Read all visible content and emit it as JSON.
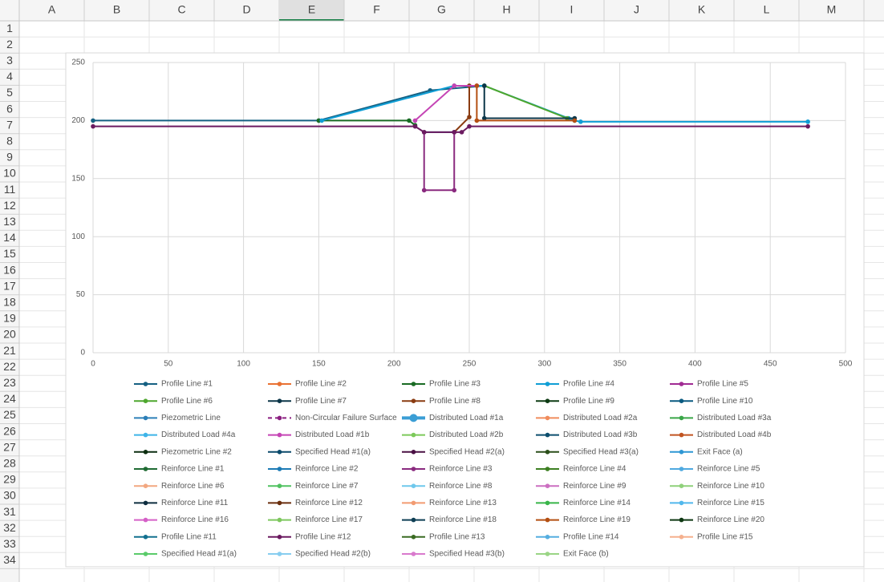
{
  "spreadsheet": {
    "columns": [
      "A",
      "B",
      "C",
      "D",
      "E",
      "F",
      "G",
      "H",
      "I",
      "J",
      "K",
      "L",
      "M"
    ],
    "active_column": 4,
    "rows": [
      "1",
      "2",
      "3",
      "4",
      "5",
      "6",
      "7",
      "8",
      "9",
      "10",
      "11",
      "12",
      "13",
      "14",
      "15",
      "16",
      "17",
      "18",
      "19",
      "20",
      "21",
      "22",
      "23",
      "24",
      "25",
      "26",
      "27",
      "28",
      "29",
      "30",
      "31",
      "32",
      "33",
      "34"
    ]
  },
  "chart_data": {
    "type": "scatter",
    "grid": true,
    "xlim": [
      0,
      500
    ],
    "xticks": [
      0,
      50,
      100,
      150,
      200,
      250,
      300,
      350,
      400,
      450,
      500
    ],
    "ylim": [
      0,
      250
    ],
    "yticks": [
      0,
      50,
      100,
      150,
      200,
      250
    ],
    "series": [
      {
        "name": "Profile Line #1",
        "color": "#156082",
        "x": [
          0,
          150,
          224,
          260
        ],
        "values": [
          200,
          200,
          226,
          230
        ]
      },
      {
        "name": "Profile Line #2",
        "color": "#E97132",
        "x": [
          240,
          255
        ],
        "values": [
          230,
          230
        ]
      },
      {
        "name": "Profile Line #3",
        "color": "#196B24",
        "x": [
          150,
          210,
          214
        ],
        "values": [
          200,
          200,
          196
        ]
      },
      {
        "name": "Profile Line #4",
        "color": "#0F9ED5",
        "x": [
          152,
          240,
          260,
          316,
          320,
          324,
          475
        ],
        "values": [
          200,
          230,
          230,
          202,
          200,
          199,
          199
        ]
      },
      {
        "name": "Profile Line #5",
        "color": "#A02B93",
        "x": [],
        "values": []
      },
      {
        "name": "Profile Line #6",
        "color": "#4EA72E",
        "x": [
          260,
          315
        ],
        "values": [
          230,
          202
        ]
      },
      {
        "name": "Profile Line #7",
        "color": "#0C3649",
        "x": [
          260,
          260,
          320
        ],
        "values": [
          230,
          202,
          202
        ]
      },
      {
        "name": "Profile Line #8",
        "color": "#8A3C12",
        "x": [
          250,
          250,
          240
        ],
        "values": [
          230,
          203,
          190
        ]
      },
      {
        "name": "Profile Line #9",
        "color": "#0E3C14",
        "x": [],
        "values": []
      },
      {
        "name": "Profile Line #10",
        "color": "#0A5A80",
        "x": [
          220,
          240
        ],
        "values": [
          190,
          190
        ]
      },
      {
        "name": "Piezometric Line",
        "color": "#2C7FB8",
        "x": [],
        "values": []
      },
      {
        "name": "Non-Circular Failure Surface",
        "color": "#8B1F80",
        "dashed": true,
        "x": [],
        "values": []
      },
      {
        "name": "Distributed Load #1a",
        "color": "#3B9ED5",
        "line_width": 4,
        "x": [],
        "values": []
      },
      {
        "name": "Distributed Load #2a",
        "color": "#F08C5C",
        "x": [],
        "values": []
      },
      {
        "name": "Distributed Load #3a",
        "color": "#3AA648",
        "x": [],
        "values": []
      },
      {
        "name": "Distributed Load #4a",
        "color": "#3DB4E8",
        "x": [],
        "values": []
      },
      {
        "name": "Distributed Load #1b",
        "color": "#C545B5",
        "x": [
          214,
          240,
          255
        ],
        "values": [
          200,
          230,
          230
        ]
      },
      {
        "name": "Distributed Load #2b",
        "color": "#7CC95A",
        "x": [],
        "values": []
      },
      {
        "name": "Distributed Load #3b",
        "color": "#0C4E6E",
        "x": [],
        "values": []
      },
      {
        "name": "Distributed Load #4b",
        "color": "#C15420",
        "x": [],
        "values": []
      },
      {
        "name": "Piezometric Line #2",
        "color": "#0C2E10",
        "x": [],
        "values": []
      },
      {
        "name": "Specified Head #1(a)",
        "color": "#0B4A6B",
        "x": [],
        "values": []
      },
      {
        "name": "Specified Head #2(a)",
        "color": "#4A1044",
        "x": [],
        "values": []
      },
      {
        "name": "Specified Head #3(a)",
        "color": "#2B4F1A",
        "x": [],
        "values": []
      },
      {
        "name": "Exit Face (a)",
        "color": "#2E97D4",
        "x": [],
        "values": []
      },
      {
        "name": "Reinforce Line #1",
        "color": "#1F6B33",
        "x": [],
        "values": []
      },
      {
        "name": "Reinforce Line #2",
        "color": "#1B7AB5",
        "x": [],
        "values": []
      },
      {
        "name": "Reinforce Line #3",
        "color": "#8A2A7F",
        "x": [
          220,
          220,
          240,
          240
        ],
        "values": [
          190,
          140,
          140,
          190
        ]
      },
      {
        "name": "Reinforce Line #4",
        "color": "#3D7F22",
        "x": [],
        "values": []
      },
      {
        "name": "Reinforce Line #5",
        "color": "#4FA9E0",
        "x": [],
        "values": []
      },
      {
        "name": "Reinforce Line #6",
        "color": "#F2A780",
        "x": [],
        "values": []
      },
      {
        "name": "Reinforce Line #7",
        "color": "#50C260",
        "x": [],
        "values": []
      },
      {
        "name": "Reinforce Line #8",
        "color": "#6FC8EC",
        "x": [],
        "values": []
      },
      {
        "name": "Reinforce Line #9",
        "color": "#CC6FC1",
        "x": [],
        "values": []
      },
      {
        "name": "Reinforce Line #10",
        "color": "#8FD17A",
        "x": [],
        "values": []
      },
      {
        "name": "Reinforce Line #11",
        "color": "#0D2D3F",
        "x": [],
        "values": []
      },
      {
        "name": "Reinforce Line #12",
        "color": "#6A2E0D",
        "x": [],
        "values": []
      },
      {
        "name": "Reinforce Line #13",
        "color": "#F29B72",
        "x": [],
        "values": []
      },
      {
        "name": "Reinforce Line #14",
        "color": "#38B549",
        "x": [],
        "values": []
      },
      {
        "name": "Reinforce Line #15",
        "color": "#52B8EC",
        "x": [],
        "values": []
      },
      {
        "name": "Reinforce Line #16",
        "color": "#D560C7",
        "x": [],
        "values": []
      },
      {
        "name": "Reinforce Line #17",
        "color": "#7EC75E",
        "x": [],
        "values": []
      },
      {
        "name": "Reinforce Line #18",
        "color": "#0F3F55",
        "x": [],
        "values": []
      },
      {
        "name": "Reinforce Line #19",
        "color": "#B44F12",
        "x": [
          255,
          255,
          320
        ],
        "values": [
          230,
          200,
          200
        ]
      },
      {
        "name": "Reinforce Line #20",
        "color": "#0E3812",
        "x": [],
        "values": []
      },
      {
        "name": "Profile Line #11",
        "color": "#12708F",
        "x": [],
        "values": []
      },
      {
        "name": "Profile Line #12",
        "color": "#6B1A60",
        "x": [
          0,
          214,
          220,
          240,
          245,
          250,
          475
        ],
        "values": [
          195,
          195,
          190,
          190,
          190,
          195,
          195
        ]
      },
      {
        "name": "Profile Line #13",
        "color": "#3A6B22",
        "x": [],
        "values": []
      },
      {
        "name": "Profile Line #14",
        "color": "#55AEE0",
        "x": [],
        "values": []
      },
      {
        "name": "Profile Line #15",
        "color": "#F5B08E",
        "x": [],
        "values": []
      },
      {
        "name": "Specified Head #1(a)",
        "color": "#5ACB6A",
        "x": [],
        "values": []
      },
      {
        "name": "Specified Head #2(b)",
        "color": "#87CDF0",
        "x": [],
        "values": []
      },
      {
        "name": "Specified Head #3(b)",
        "color": "#D97ACD",
        "x": [],
        "values": []
      },
      {
        "name": "Exit Face (b)",
        "color": "#9AD585",
        "x": [],
        "values": []
      }
    ]
  }
}
